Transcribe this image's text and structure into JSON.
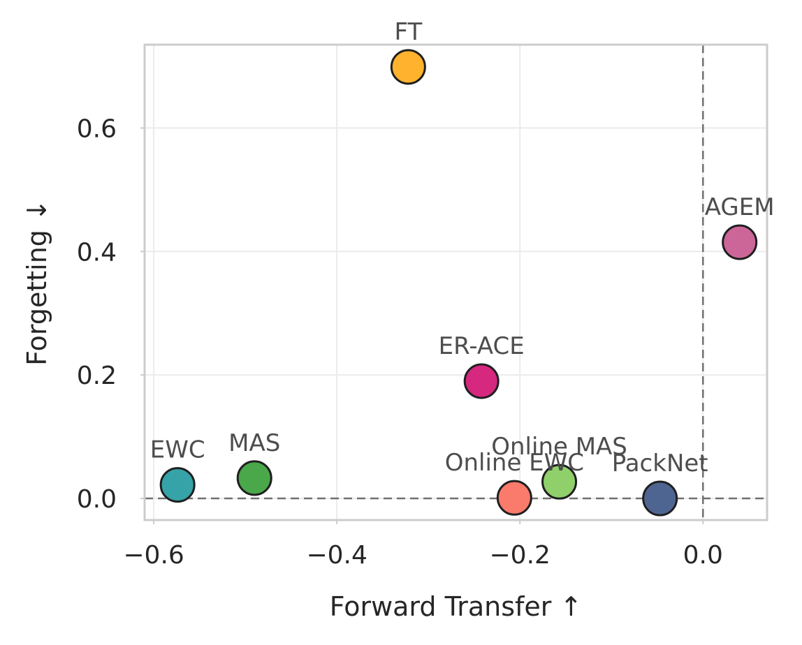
{
  "chart_data": {
    "type": "scatter",
    "title": "",
    "xlabel": "Forward Transfer ↑",
    "ylabel": "Forgetting ↓",
    "xlim": [
      -0.61,
      0.07
    ],
    "ylim": [
      -0.035,
      0.735
    ],
    "x_ticks": [
      {
        "value": -0.6,
        "label": "−0.6"
      },
      {
        "value": -0.4,
        "label": "−0.4"
      },
      {
        "value": -0.2,
        "label": "−0.2"
      },
      {
        "value": 0.0,
        "label": "0.0"
      }
    ],
    "y_ticks": [
      {
        "value": 0.0,
        "label": "0.0"
      },
      {
        "value": 0.2,
        "label": "0.2"
      },
      {
        "value": 0.4,
        "label": "0.4"
      },
      {
        "value": 0.6,
        "label": "0.6"
      }
    ],
    "grid": true,
    "reference_lines": {
      "x": 0.0,
      "y": 0.0
    },
    "points": [
      {
        "label": "FT",
        "x": -0.322,
        "y": 0.699,
        "color": "#ffb22e"
      },
      {
        "label": "AGEM",
        "x": 0.04,
        "y": 0.415,
        "color": "#cc6699"
      },
      {
        "label": "ER-ACE",
        "x": -0.242,
        "y": 0.19,
        "color": "#d6287f"
      },
      {
        "label": "EWC",
        "x": -0.574,
        "y": 0.022,
        "color": "#35a3a7"
      },
      {
        "label": "MAS",
        "x": -0.49,
        "y": 0.033,
        "color": "#4aa84a"
      },
      {
        "label": "Online EWC",
        "x": -0.206,
        "y": 0.001,
        "color": "#fa7a6b"
      },
      {
        "label": "Online MAS",
        "x": -0.157,
        "y": 0.027,
        "color": "#8fd06b"
      },
      {
        "label": "PackNet",
        "x": -0.047,
        "y": 0.0,
        "color": "#4f6591"
      }
    ]
  }
}
